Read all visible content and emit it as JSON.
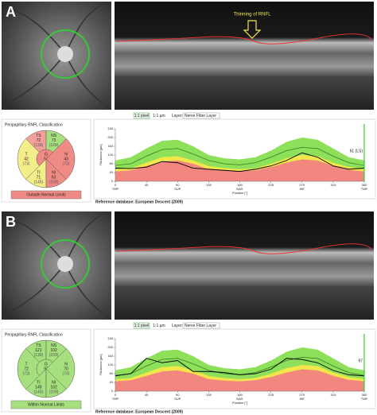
{
  "panels": [
    {
      "label": "A",
      "annotation": "Thinning of RNFL",
      "toolbar": {
        "pixel": "1:1 pixel",
        "micron": "1:1 µm",
        "layer_label": "Layer:",
        "layer": "Nerve Fiber Layer"
      },
      "classification": {
        "title": "Peripapillary RNFL Classification",
        "sectors": [
          {
            "name": "TS",
            "value": 72,
            "reference": "(139)",
            "color": "#f4a09a"
          },
          {
            "name": "NS",
            "value": 73,
            "reference": "(109)",
            "color": "#a6e07e"
          },
          {
            "name": "T",
            "value": 42,
            "reference": "(73)",
            "color": "#f3ee8a"
          },
          {
            "name": "G",
            "value": 54,
            "reference": "(97)",
            "color": "#f08a84"
          },
          {
            "name": "N",
            "value": 43,
            "reference": "(73)",
            "color": "#f08a84"
          },
          {
            "name": "TI",
            "value": 71,
            "reference": "(145)",
            "color": "#f3ee8a"
          },
          {
            "name": "NI",
            "value": 63,
            "reference": "(109)",
            "color": "#f08a84"
          }
        ],
        "status": "Outside Normal Limits",
        "status_color": "#f08a84"
      },
      "chart_data": {
        "type": "line",
        "ylabel": "Thickness [µm]",
        "xlabel": "Position [°]",
        "annotation": "61 (LS)",
        "x": [
          0,
          22.5,
          45,
          67.5,
          90,
          112.5,
          135,
          157.5,
          180,
          202.5,
          225,
          247.5,
          270,
          292.5,
          315,
          337.5,
          360
        ],
        "xlim": [
          0,
          360
        ],
        "xticks": [
          0,
          45,
          90,
          135,
          180,
          225,
          270,
          315,
          360
        ],
        "xcategories": [
          {
            "value": 0,
            "label": "TMP"
          },
          {
            "value": 90,
            "label": "SUP"
          },
          {
            "value": 180,
            "label": "NAS"
          },
          {
            "value": 270,
            "label": "INF"
          },
          {
            "value": 360,
            "label": "TMP"
          }
        ],
        "ylim": [
          0,
          240
        ],
        "yticks": [
          0,
          40,
          80,
          120,
          160,
          200,
          240
        ],
        "areas": [
          {
            "color": "#8ee05a",
            "values": [
              95,
              110,
              150,
              185,
              190,
              160,
              120,
              105,
              100,
              110,
              140,
              180,
              200,
              190,
              150,
              110,
              95
            ]
          },
          {
            "color": "#f2e64a",
            "values": [
              55,
              60,
              85,
              110,
              115,
              95,
              70,
              60,
              55,
              60,
              80,
              105,
              120,
              115,
              85,
              65,
              55
            ]
          },
          {
            "color": "#f2877f",
            "values": [
              45,
              50,
              70,
              90,
              95,
              80,
              55,
              48,
              45,
              50,
              65,
              85,
              100,
              95,
              70,
              52,
              45
            ]
          }
        ],
        "series": [
          {
            "color": "#2f7a22",
            "values": [
              72,
              80,
              115,
              145,
              150,
              125,
              95,
              80,
              75,
              85,
              110,
              140,
              155,
              150,
              115,
              85,
              72
            ]
          },
          {
            "color": "#000000",
            "values": [
              60,
              58,
              65,
              90,
              85,
              60,
              55,
              50,
              45,
              55,
              70,
              95,
              130,
              110,
              70,
              55,
              60
            ]
          }
        ]
      },
      "reference": "Reference database: European Descent (2009)"
    },
    {
      "label": "B",
      "toolbar": {
        "pixel": "1:1 pixel",
        "micron": "1:1 µm",
        "layer_label": "Layer:",
        "layer": "Nerve Fiber Layer"
      },
      "classification": {
        "title": "Peripapillary RNFL Classification",
        "sectors": [
          {
            "name": "TS",
            "value": 121,
            "reference": "(139)",
            "color": "#a6e07e"
          },
          {
            "name": "NS",
            "value": 102,
            "reference": "(109)",
            "color": "#a6e07e"
          },
          {
            "name": "T",
            "value": 72,
            "reference": "(73)",
            "color": "#a6e07e"
          },
          {
            "name": "G",
            "value": 97,
            "reference": "(97)",
            "color": "#a6e07e"
          },
          {
            "name": "N",
            "value": 70,
            "reference": "(73)",
            "color": "#a6e07e"
          },
          {
            "name": "TI",
            "value": 149,
            "reference": "(145)",
            "color": "#a6e07e"
          },
          {
            "name": "NI",
            "value": 102,
            "reference": "(109)",
            "color": "#a6e07e"
          }
        ],
        "status": "Within Normal Limits",
        "status_color": "#a6e07e"
      },
      "chart_data": {
        "type": "line",
        "ylabel": "Thickness [µm]",
        "xlabel": "Position [°]",
        "annotation": "97",
        "x": [
          0,
          22.5,
          45,
          67.5,
          90,
          112.5,
          135,
          157.5,
          180,
          202.5,
          225,
          247.5,
          270,
          292.5,
          315,
          337.5,
          360
        ],
        "xlim": [
          0,
          360
        ],
        "xticks": [
          0,
          45,
          90,
          135,
          180,
          225,
          270,
          315,
          360
        ],
        "xcategories": [
          {
            "value": 0,
            "label": "TMP"
          },
          {
            "value": 90,
            "label": "SUP"
          },
          {
            "value": 180,
            "label": "NAS"
          },
          {
            "value": 270,
            "label": "INF"
          },
          {
            "value": 360,
            "label": "TMP"
          }
        ],
        "ylim": [
          0,
          240
        ],
        "yticks": [
          0,
          40,
          80,
          120,
          160,
          200,
          240
        ],
        "areas": [
          {
            "color": "#8ee05a",
            "values": [
              95,
              110,
              150,
              185,
              190,
              160,
              120,
              105,
              100,
              110,
              140,
              180,
              200,
              190,
              150,
              110,
              95
            ]
          },
          {
            "color": "#f2e64a",
            "values": [
              55,
              60,
              85,
              110,
              115,
              95,
              70,
              60,
              55,
              60,
              80,
              105,
              120,
              115,
              85,
              65,
              55
            ]
          },
          {
            "color": "#f2877f",
            "values": [
              45,
              50,
              70,
              90,
              95,
              80,
              55,
              48,
              45,
              50,
              65,
              85,
              100,
              95,
              70,
              52,
              45
            ]
          }
        ],
        "series": [
          {
            "color": "#2f7a22",
            "values": [
              72,
              80,
              115,
              145,
              150,
              125,
              95,
              80,
              75,
              85,
              110,
              140,
              155,
              150,
              115,
              85,
              72
            ]
          },
          {
            "color": "#000000",
            "values": [
              70,
              80,
              150,
              130,
              140,
              90,
              90,
              85,
              75,
              80,
              100,
              150,
              145,
              130,
              95,
              75,
              70
            ]
          }
        ]
      },
      "reference": "Reference database: European Descent (2009)"
    }
  ]
}
